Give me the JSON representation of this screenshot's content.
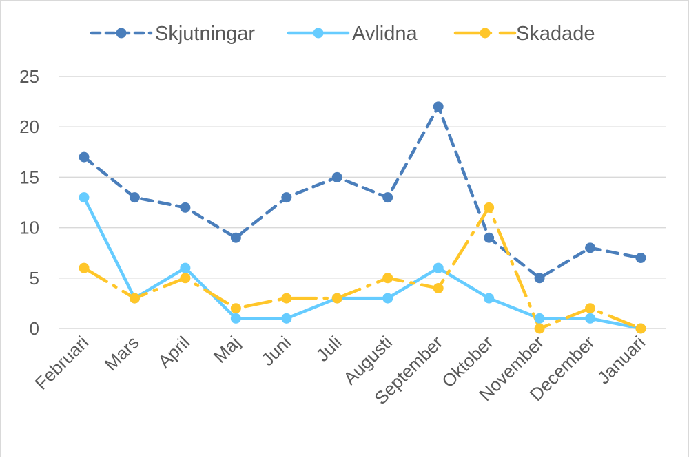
{
  "chart_data": {
    "type": "line",
    "categories": [
      "Februari",
      "Mars",
      "April",
      "Maj",
      "Juni",
      "Juli",
      "Augusti",
      "September",
      "Oktober",
      "November",
      "December",
      "Januari"
    ],
    "series": [
      {
        "name": "Skjutningar",
        "values": [
          17,
          13,
          12,
          9,
          13,
          15,
          13,
          22,
          9,
          5,
          8,
          7
        ],
        "color": "#4A7EBB",
        "dash": "dashed"
      },
      {
        "name": "Avlidna",
        "values": [
          13,
          3,
          6,
          1,
          1,
          3,
          3,
          6,
          3,
          1,
          1,
          0
        ],
        "color": "#66CCFF",
        "dash": "solid"
      },
      {
        "name": "Skadade",
        "values": [
          6,
          3,
          5,
          2,
          3,
          3,
          5,
          4,
          12,
          0,
          2,
          0
        ],
        "color": "#FFC629",
        "dash": "long-dash-dot"
      }
    ],
    "yticks": [
      0,
      5,
      10,
      15,
      20,
      25
    ],
    "ylim": [
      0,
      25
    ],
    "grid": true,
    "legend": "top"
  }
}
